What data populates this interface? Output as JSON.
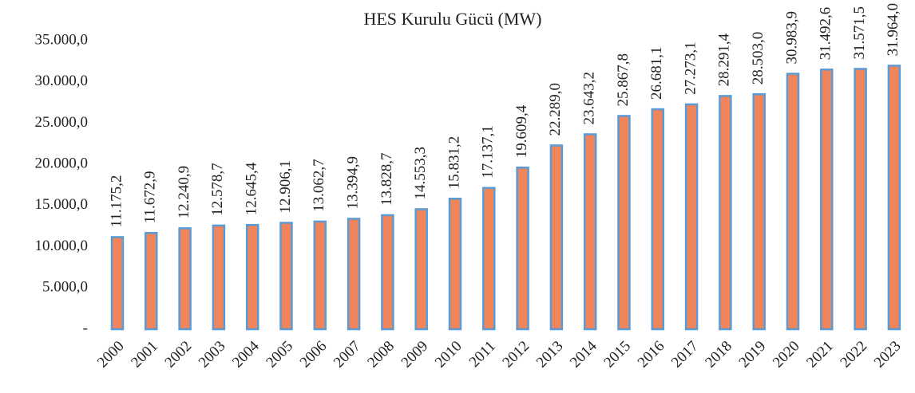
{
  "chart_data": {
    "type": "bar",
    "title": "HES Kurulu Gücü (MW)",
    "categories": [
      "2000",
      "2001",
      "2002",
      "2003",
      "2004",
      "2005",
      "2006",
      "2007",
      "2008",
      "2009",
      "2010",
      "2011",
      "2012",
      "2013",
      "2014",
      "2015",
      "2016",
      "2017",
      "2018",
      "2019",
      "2020",
      "2021",
      "2022",
      "2023"
    ],
    "values": [
      11175.2,
      11672.9,
      12240.9,
      12578.7,
      12645.4,
      12906.1,
      13062.7,
      13394.9,
      13828.7,
      14553.3,
      15831.2,
      17137.1,
      19609.4,
      22289.0,
      23643.2,
      25867.8,
      26681.1,
      27273.1,
      28291.4,
      28503.0,
      30983.9,
      31492.6,
      31571.5,
      31964.0
    ],
    "value_labels": [
      "11.175,2",
      "11.672,9",
      "12.240,9",
      "12.578,7",
      "12.645,4",
      "12.906,1",
      "13.062,7",
      "13.394,9",
      "13.828,7",
      "14.553,3",
      "15.831,2",
      "17.137,1",
      "19.609,4",
      "22.289,0",
      "23.643,2",
      "25.867,8",
      "26.681,1",
      "27.273,1",
      "28.291,4",
      "28.503,0",
      "30.983,9",
      "31.492,6",
      "31.571,5",
      "31.964,0"
    ],
    "color": "#f0845a",
    "edge_color": "#5b9bd5",
    "ylim": [
      0,
      35000
    ],
    "yticks": [
      {
        "value": 0,
        "label": "-"
      },
      {
        "value": 5000,
        "label": "5.000,0"
      },
      {
        "value": 10000,
        "label": "10.000,0"
      },
      {
        "value": 15000,
        "label": "15.000,0"
      },
      {
        "value": 20000,
        "label": "20.000,0"
      },
      {
        "value": 25000,
        "label": "25.000,0"
      },
      {
        "value": 30000,
        "label": "30.000,0"
      },
      {
        "value": 35000,
        "label": "35.000,0"
      }
    ],
    "grid": false
  }
}
